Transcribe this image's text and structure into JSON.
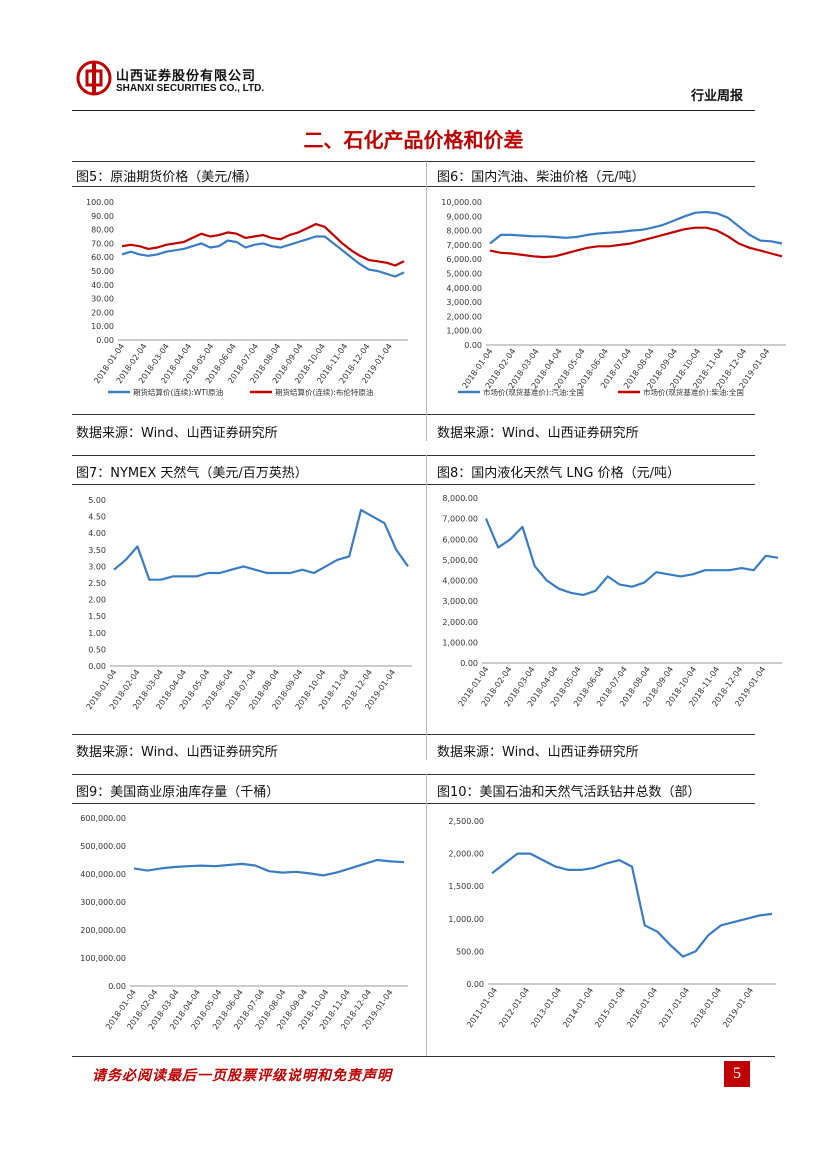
{
  "header": {
    "company_cn": "山西证券股份有限公司",
    "company_en": "SHANXI SECURITIES CO., LTD.",
    "report_type": "行业周报"
  },
  "section_title": "二、石化产品价格和价差",
  "figures": {
    "fig5": {
      "title": "图5：原油期货价格（美元/桶）",
      "source": "数据来源：Wind、山西证券研究所"
    },
    "fig6": {
      "title": "图6：国内汽油、柴油价格（元/吨）",
      "source": "数据来源：Wind、山西证券研究所"
    },
    "fig7": {
      "title": "图7：NYMEX 天然气（美元/百万英热）",
      "source": "数据来源：Wind、山西证券研究所"
    },
    "fig8": {
      "title": "图8：国内液化天然气 LNG 价格（元/吨）",
      "source": "数据来源：Wind、山西证券研究所"
    },
    "fig9": {
      "title": "图9：美国商业原油库存量（千桶）"
    },
    "fig10": {
      "title": "图10：美国石油和天然气活跃钻井总数（部）"
    }
  },
  "footer": {
    "disclaimer": "请务必阅读最后一页股票评级说明和免责声明",
    "page_number": "5"
  },
  "colors": {
    "blue": "#3a7cc4",
    "red": "#c00000"
  },
  "chart_data": [
    {
      "id": "fig5",
      "type": "line",
      "x_ticks": [
        "2018-01-04",
        "2018-02-04",
        "2018-03-04",
        "2018-04-04",
        "2018-05-04",
        "2018-06-04",
        "2018-07-04",
        "2018-08-04",
        "2018-09-04",
        "2018-10-04",
        "2018-11-04",
        "2018-12-04",
        "2019-01-04"
      ],
      "y_ticks": [
        "0.00",
        "10.00",
        "20.00",
        "30.00",
        "40.00",
        "50.00",
        "60.00",
        "70.00",
        "80.00",
        "90.00",
        "100.00"
      ],
      "ylim": [
        0,
        100
      ],
      "series": [
        {
          "name": "期货结算价(连续):WTI原油",
          "color": "#3a7cc4",
          "values": [
            62,
            64,
            62,
            61,
            62,
            64,
            65,
            66,
            68,
            70,
            67,
            68,
            72,
            71,
            67,
            69,
            70,
            68,
            67,
            69,
            71,
            73,
            75,
            75,
            70,
            65,
            60,
            55,
            51,
            50,
            48,
            46,
            49
          ]
        },
        {
          "name": "期货结算价(连续):布伦特原油",
          "color": "#c00000",
          "values": [
            68,
            69,
            68,
            66,
            67,
            69,
            70,
            71,
            74,
            77,
            75,
            76,
            78,
            77,
            74,
            75,
            76,
            74,
            73,
            76,
            78,
            81,
            84,
            82,
            76,
            70,
            65,
            61,
            58,
            57,
            56,
            54,
            57
          ]
        }
      ]
    },
    {
      "id": "fig6",
      "type": "line",
      "x_ticks": [
        "2018-01-04",
        "2018-02-04",
        "2018-03-04",
        "2018-04-04",
        "2018-05-04",
        "2018-06-04",
        "2018-07-04",
        "2018-08-04",
        "2018-09-04",
        "2018-10-04",
        "2018-11-04",
        "2018-12-04",
        "2019-01-04"
      ],
      "y_ticks": [
        "0.00",
        "1,000.00",
        "2,000.00",
        "3,000.00",
        "4,000.00",
        "5,000.00",
        "6,000.00",
        "7,000.00",
        "8,000.00",
        "9,000.00",
        "10,000.00"
      ],
      "ylim": [
        0,
        10000
      ],
      "series": [
        {
          "name": "市场价(现货基准价):汽油:全国",
          "color": "#3a7cc4",
          "values": [
            7100,
            7700,
            7700,
            7650,
            7600,
            7600,
            7550,
            7500,
            7550,
            7700,
            7800,
            7850,
            7900,
            8000,
            8050,
            8200,
            8400,
            8700,
            9000,
            9250,
            9300,
            9200,
            8900,
            8300,
            7700,
            7300,
            7250,
            7100
          ]
        },
        {
          "name": "市场价(现货基准价):柴油:全国",
          "color": "#c00000",
          "values": [
            6600,
            6450,
            6400,
            6300,
            6200,
            6150,
            6200,
            6400,
            6600,
            6800,
            6900,
            6900,
            7000,
            7100,
            7300,
            7500,
            7700,
            7900,
            8100,
            8200,
            8200,
            8000,
            7600,
            7100,
            6800,
            6600,
            6400,
            6200
          ]
        }
      ]
    },
    {
      "id": "fig7",
      "type": "line",
      "x_ticks": [
        "2018-01-04",
        "2018-02-04",
        "2018-03-04",
        "2018-04-04",
        "2018-05-04",
        "2018-06-04",
        "2018-07-04",
        "2018-08-04",
        "2018-09-04",
        "2018-10-04",
        "2018-11-04",
        "2018-12-04",
        "2019-01-04"
      ],
      "y_ticks": [
        "0.00",
        "0.50",
        "1.00",
        "1.50",
        "2.00",
        "2.50",
        "3.00",
        "3.50",
        "4.00",
        "4.50",
        "5.00"
      ],
      "ylim": [
        0,
        5
      ],
      "series": [
        {
          "name": "NYMEX 天然气",
          "color": "#3a7cc4",
          "values": [
            2.9,
            3.2,
            3.6,
            2.6,
            2.6,
            2.7,
            2.7,
            2.7,
            2.8,
            2.8,
            2.9,
            3.0,
            2.9,
            2.8,
            2.8,
            2.8,
            2.9,
            2.8,
            3.0,
            3.2,
            3.3,
            4.7,
            4.5,
            4.3,
            3.5,
            3.0
          ]
        }
      ]
    },
    {
      "id": "fig8",
      "type": "line",
      "x_ticks": [
        "2018-01-04",
        "2018-02-04",
        "2018-03-04",
        "2018-04-04",
        "2018-05-04",
        "2018-06-04",
        "2018-07-04",
        "2018-08-04",
        "2018-09-04",
        "2018-10-04",
        "2018-11-04",
        "2018-12-04",
        "2019-01-04"
      ],
      "y_ticks": [
        "0.00",
        "1,000.00",
        "2,000.00",
        "3,000.00",
        "4,000.00",
        "5,000.00",
        "6,000.00",
        "7,000.00",
        "8,000.00"
      ],
      "ylim": [
        0,
        8000
      ],
      "series": [
        {
          "name": "LNG 价格",
          "color": "#3a7cc4",
          "values": [
            7000,
            5600,
            6000,
            6600,
            4700,
            4000,
            3600,
            3400,
            3300,
            3500,
            4200,
            3800,
            3700,
            3900,
            4400,
            4300,
            4200,
            4300,
            4500,
            4500,
            4500,
            4600,
            4500,
            5200,
            5100
          ]
        }
      ]
    },
    {
      "id": "fig9",
      "type": "line",
      "x_ticks": [
        "2018-01-04",
        "2018-02-04",
        "2018-03-04",
        "2018-04-04",
        "2018-05-04",
        "2018-06-04",
        "2018-07-04",
        "2018-08-04",
        "2018-09-04",
        "2018-10-04",
        "2018-11-04",
        "2018-12-04",
        "2019-01-04"
      ],
      "y_ticks": [
        "0.00",
        "100,000.00",
        "200,000.00",
        "300,000.00",
        "400,000.00",
        "500,000.00",
        "600,000.00"
      ],
      "ylim": [
        0,
        600000
      ],
      "series": [
        {
          "name": "美国商业原油库存量",
          "color": "#3a7cc4",
          "values": [
            420000,
            412000,
            420000,
            425000,
            428000,
            430000,
            428000,
            432000,
            436000,
            430000,
            410000,
            405000,
            408000,
            402000,
            395000,
            405000,
            420000,
            435000,
            450000,
            445000,
            442000
          ]
        }
      ]
    },
    {
      "id": "fig10",
      "type": "line",
      "x_ticks": [
        "2011-01-04",
        "2012-01-04",
        "2013-01-04",
        "2014-01-04",
        "2015-01-04",
        "2016-01-04",
        "2017-01-04",
        "2018-01-04",
        "2019-01-04"
      ],
      "y_ticks": [
        "0.00",
        "500.00",
        "1,000.00",
        "1,500.00",
        "2,000.00",
        "2,500.00"
      ],
      "ylim": [
        0,
        2500
      ],
      "series": [
        {
          "name": "美国石油和天然气活跃钻井总数",
          "color": "#3a7cc4",
          "values": [
            1700,
            1850,
            2000,
            2000,
            1900,
            1800,
            1750,
            1750,
            1780,
            1850,
            1900,
            1800,
            900,
            800,
            600,
            420,
            500,
            750,
            900,
            950,
            1000,
            1050,
            1075
          ]
        }
      ]
    }
  ]
}
